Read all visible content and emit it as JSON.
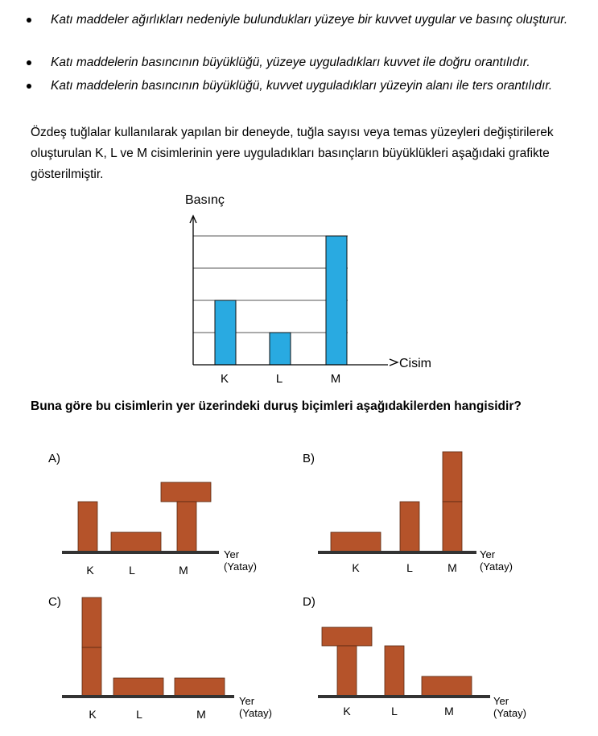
{
  "bullets": [
    "Katı maddeler ağırlıkları nedeniyle bulundukları yüzeye bir kuvvet uygular ve basınç oluşturur.",
    "Katı maddelerin basıncının büyüklüğü, yüzeye uyguladıkları kuvvet ile doğru orantılıdır.",
    "Katı maddelerin basıncının büyüklüğü, kuvvet uyguladıkları yüzeyin alanı ile ters orantılıdır."
  ],
  "intro": "Özdeş tuğlalar kullanılarak yapılan bir deneyde, tuğla sayısı veya temas yüzeyleri değiştirilerek oluşturulan K, L ve M cisimlerinin yere uyguladıkları basınçların büyüklükleri aşağıdaki grafikte gösterilmiştir.",
  "chart_data": {
    "type": "bar",
    "title": "",
    "ylabel": "Basınç",
    "xlabel": "Cisim",
    "categories": [
      "K",
      "L",
      "M"
    ],
    "values": [
      2,
      1,
      4
    ],
    "ylim": [
      0,
      4
    ],
    "grid": true,
    "bar_color": "#29aae1"
  },
  "question": "Buna göre bu cisimlerin yer üzerindeki duruş biçimleri aşağıdakilerden hangisidir?",
  "options": {
    "A": {
      "label": "A)",
      "names": [
        "K",
        "L",
        "M"
      ]
    },
    "B": {
      "label": "B)",
      "names": [
        "K",
        "L",
        "M"
      ]
    },
    "C": {
      "label": "C)",
      "names": [
        "K",
        "L",
        "M"
      ]
    },
    "D": {
      "label": "D)",
      "names": [
        "K",
        "L",
        "M"
      ]
    }
  },
  "ground_label": "Yer",
  "ground_sublabel": "(Yatay)",
  "brick_color": "#b5532a",
  "ground_color": "#333333"
}
